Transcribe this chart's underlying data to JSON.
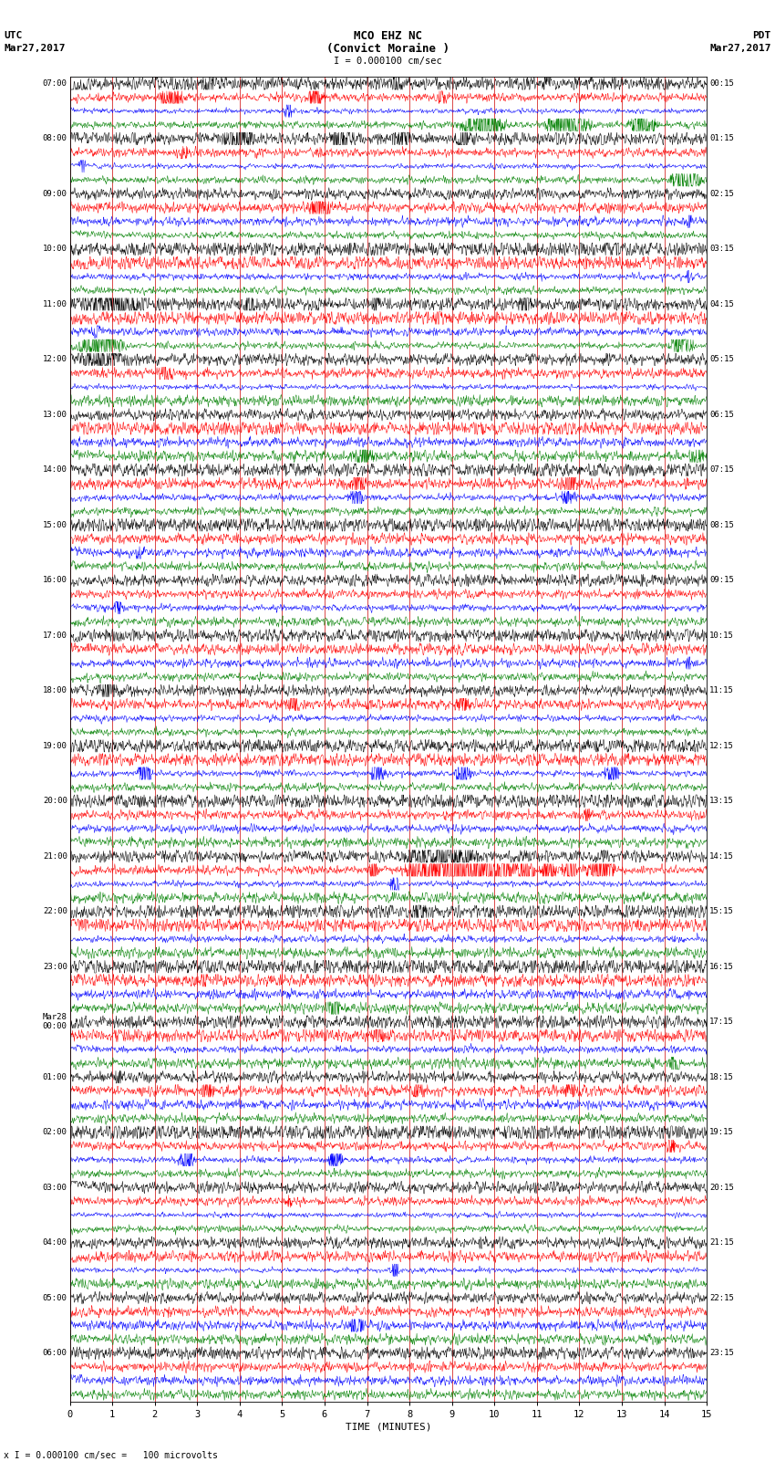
{
  "title_line1": "MCO EHZ NC",
  "title_line2": "(Convict Moraine )",
  "scale_label": "I = 0.000100 cm/sec",
  "left_label_top": "UTC",
  "left_label_date": "Mar27,2017",
  "right_label_top": "PDT",
  "right_label_date": "Mar27,2017",
  "xlabel": "TIME (MINUTES)",
  "footer": "x I = 0.000100 cm/sec =   100 microvolts",
  "xlim": [
    0,
    15
  ],
  "xticks": [
    0,
    1,
    2,
    3,
    4,
    5,
    6,
    7,
    8,
    9,
    10,
    11,
    12,
    13,
    14,
    15
  ],
  "trace_colors": [
    "black",
    "red",
    "blue",
    "green"
  ],
  "n_hour_blocks": 24,
  "traces_per_block": 4,
  "bg_color": "#ffffff",
  "grid_color": "#cc0000",
  "utc_times": [
    "07:00",
    "08:00",
    "09:00",
    "10:00",
    "11:00",
    "12:00",
    "13:00",
    "14:00",
    "15:00",
    "16:00",
    "17:00",
    "18:00",
    "19:00",
    "20:00",
    "21:00",
    "22:00",
    "23:00",
    "Mar28\n00:00",
    "01:00",
    "02:00",
    "03:00",
    "04:00",
    "05:00",
    "06:00"
  ],
  "pdt_times": [
    "00:15",
    "01:15",
    "02:15",
    "03:15",
    "04:15",
    "05:15",
    "06:15",
    "07:15",
    "08:15",
    "09:15",
    "10:15",
    "11:15",
    "12:15",
    "13:15",
    "14:15",
    "15:15",
    "16:15",
    "17:15",
    "18:15",
    "19:15",
    "20:15",
    "21:15",
    "22:15",
    "23:15"
  ],
  "mar28_block": 17
}
